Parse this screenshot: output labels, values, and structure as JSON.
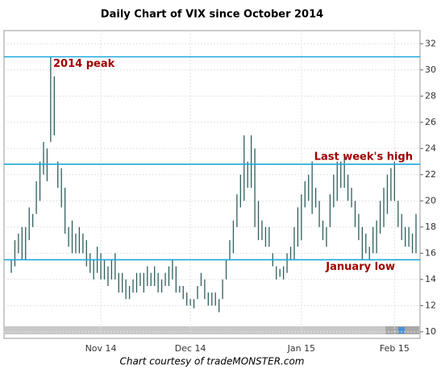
{
  "chart_data": {
    "type": "hlbar",
    "title": "Daily Chart of VIX since October 2014",
    "footer": "Chart courtesy  of tradeMONSTER.com",
    "categories": [
      null,
      null,
      null,
      null,
      null,
      null,
      null,
      null,
      null,
      null,
      null,
      null,
      null,
      null,
      null,
      null,
      null,
      null,
      null,
      null,
      null,
      null,
      null,
      null,
      null,
      "Nov 14",
      null,
      null,
      null,
      null,
      null,
      null,
      null,
      null,
      null,
      null,
      null,
      null,
      null,
      null,
      null,
      null,
      null,
      null,
      null,
      null,
      null,
      null,
      null,
      null,
      "Dec 14",
      null,
      null,
      null,
      null,
      null,
      null,
      null,
      null,
      null,
      null,
      null,
      null,
      null,
      null,
      null,
      null,
      null,
      null,
      null,
      null,
      null,
      null,
      null,
      null,
      null,
      null,
      null,
      null,
      null,
      null,
      "Jan 15",
      null,
      null,
      null,
      null,
      null,
      null,
      null,
      null,
      null,
      null,
      null,
      null,
      null,
      null,
      null,
      null,
      null,
      null,
      null,
      null,
      null,
      null,
      null,
      null,
      null,
      "Feb 15",
      null,
      null,
      null,
      null,
      null,
      null
    ],
    "high": [
      15.5,
      17,
      17.5,
      18,
      18,
      19.5,
      19,
      21.5,
      23,
      24.5,
      24,
      31,
      29.5,
      23,
      22.5,
      21,
      18,
      18.5,
      17.5,
      18,
      17.5,
      17,
      16,
      15.5,
      16.5,
      16,
      15.5,
      15,
      15.5,
      16,
      14.5,
      14.5,
      14,
      13.5,
      14,
      14.5,
      14.5,
      14.5,
      15,
      14.5,
      15,
      14.5,
      14,
      14.5,
      15,
      15.5,
      15,
      13.5,
      13.5,
      13,
      12.5,
      12.5,
      13.5,
      14.5,
      14,
      13,
      13,
      13,
      12.5,
      14,
      15.5,
      17,
      18.5,
      20.5,
      22,
      25,
      23,
      25,
      24,
      20,
      18.5,
      18,
      18,
      16,
      15,
      14.8,
      15,
      16,
      16.5,
      18,
      19.5,
      20.5,
      21.5,
      22,
      23,
      21,
      20,
      18.5,
      18,
      20.5,
      22,
      23,
      23,
      23.5,
      22,
      21,
      20,
      19,
      18,
      17.5,
      16.5,
      18,
      18.5,
      20,
      21,
      22,
      22.5,
      23,
      20,
      19,
      18,
      18,
      17.5,
      19
    ],
    "low": [
      14.5,
      15,
      16,
      15.5,
      15.5,
      17,
      18,
      19,
      20,
      22,
      21.5,
      24.5,
      25,
      21,
      19.5,
      17.5,
      16.5,
      16,
      16,
      16,
      16,
      15,
      14.5,
      14,
      14.5,
      14,
      14,
      13.5,
      14,
      14,
      13,
      13,
      12.5,
      12.5,
      13,
      13,
      13.5,
      13,
      13.5,
      13.5,
      13.5,
      13,
      13,
      13.5,
      13.5,
      14,
      13,
      13,
      12.5,
      12,
      12,
      11.8,
      12.5,
      13.5,
      12.5,
      12,
      12,
      12,
      11.5,
      12.5,
      14,
      15.5,
      16,
      18,
      19.5,
      20,
      21,
      21,
      18,
      17,
      17,
      16.5,
      16.5,
      15,
      14,
      14.2,
      14,
      14.5,
      15.5,
      15.5,
      16.5,
      17,
      19.5,
      20,
      19,
      19.5,
      18,
      17,
      16.5,
      18,
      19.5,
      20,
      21,
      21,
      20,
      19.5,
      18,
      17,
      15.5,
      16,
      15.5,
      16,
      16,
      17.5,
      18,
      19,
      20,
      20,
      18,
      17,
      16.5,
      16.5,
      16,
      16
    ],
    "color": "#2e5e5e",
    "lines": [
      {
        "value": 31,
        "label": "2014 peak"
      },
      {
        "value": 22.8,
        "label": "Last week's high"
      },
      {
        "value": 15.5,
        "label": "January low"
      }
    ],
    "line_color": "#1ca8dc",
    "ylim": [
      9.5,
      33
    ],
    "yticks": [
      10,
      12,
      14,
      16,
      18,
      20,
      22,
      24,
      26,
      28,
      30,
      32
    ],
    "grid": true
  }
}
